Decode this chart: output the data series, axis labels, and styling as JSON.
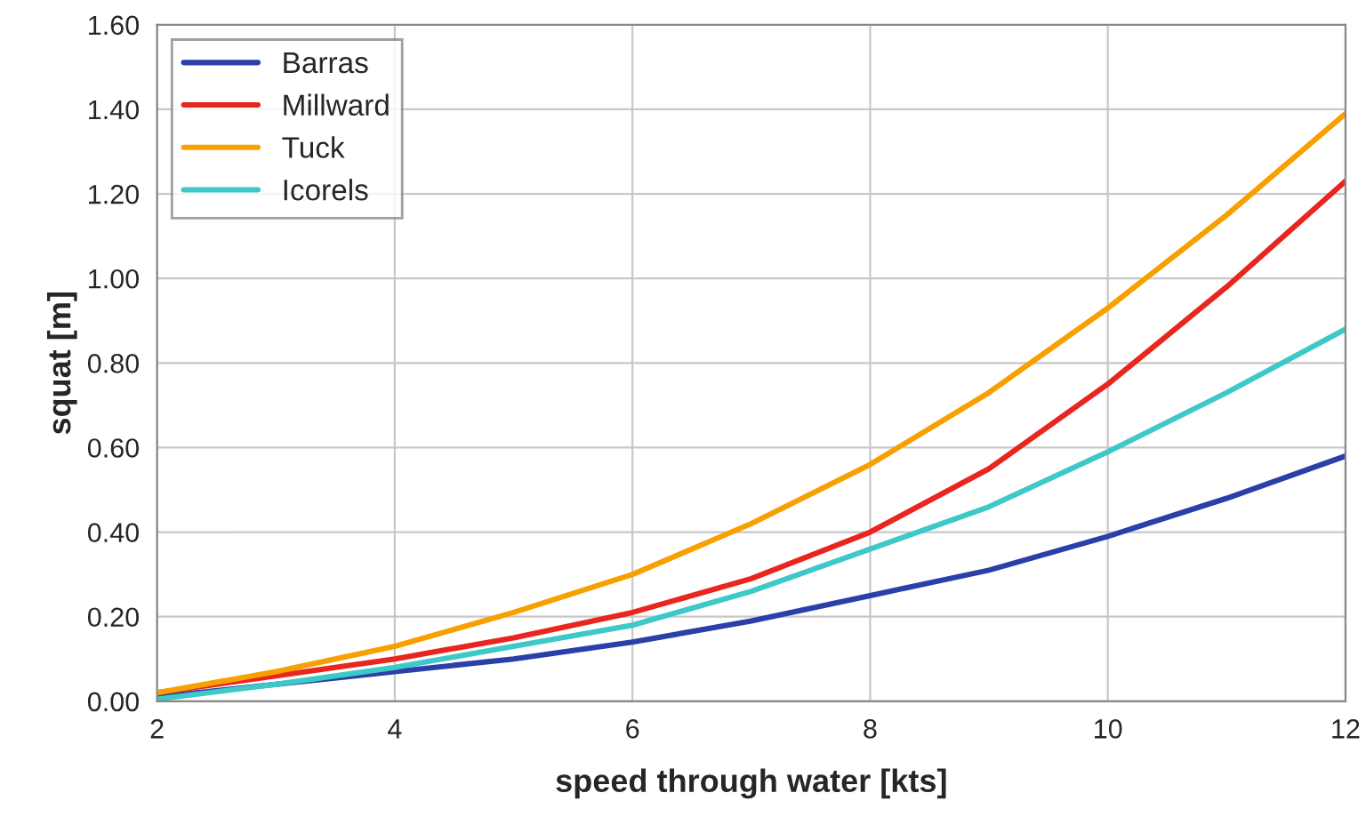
{
  "chart_data": {
    "type": "line",
    "xlabel": "speed through water [kts]",
    "ylabel": "squat [m]",
    "x": [
      2,
      3,
      4,
      5,
      6,
      7,
      8,
      9,
      10,
      11,
      12
    ],
    "series": [
      {
        "name": "Barras",
        "color": "#2b3fa8",
        "values": [
          0.01,
          0.04,
          0.07,
          0.1,
          0.14,
          0.19,
          0.25,
          0.31,
          0.39,
          0.48,
          0.58
        ]
      },
      {
        "name": "Millward",
        "color": "#e8251f",
        "values": [
          0.02,
          0.06,
          0.1,
          0.15,
          0.21,
          0.29,
          0.4,
          0.55,
          0.75,
          0.98,
          1.23
        ]
      },
      {
        "name": "Tuck",
        "color": "#f7a000",
        "values": [
          0.02,
          0.07,
          0.13,
          0.21,
          0.3,
          0.42,
          0.56,
          0.73,
          0.93,
          1.15,
          1.39
        ]
      },
      {
        "name": "Icorels",
        "color": "#3ec8c8",
        "values": [
          0.005,
          0.04,
          0.08,
          0.13,
          0.18,
          0.26,
          0.36,
          0.46,
          0.59,
          0.73,
          0.88
        ]
      }
    ],
    "xlim": [
      2,
      12
    ],
    "xticks": [
      2,
      4,
      6,
      8,
      10,
      12
    ],
    "ylim": [
      0,
      1.6
    ],
    "yticks": [
      {
        "value": 0,
        "label": "0.00"
      },
      {
        "value": 0.2,
        "label": "0.20"
      },
      {
        "value": 0.4,
        "label": "0.40"
      },
      {
        "value": 0.6,
        "label": "0.60"
      },
      {
        "value": 0.8,
        "label": "0.80"
      },
      {
        "value": 1.0,
        "label": "1.00"
      },
      {
        "value": 1.2,
        "label": "1.20"
      },
      {
        "value": 1.4,
        "label": "1.40"
      },
      {
        "value": 1.6,
        "label": "1.60"
      }
    ],
    "grid": true,
    "legend": "top left",
    "marker": "none",
    "line_style": "solid"
  }
}
